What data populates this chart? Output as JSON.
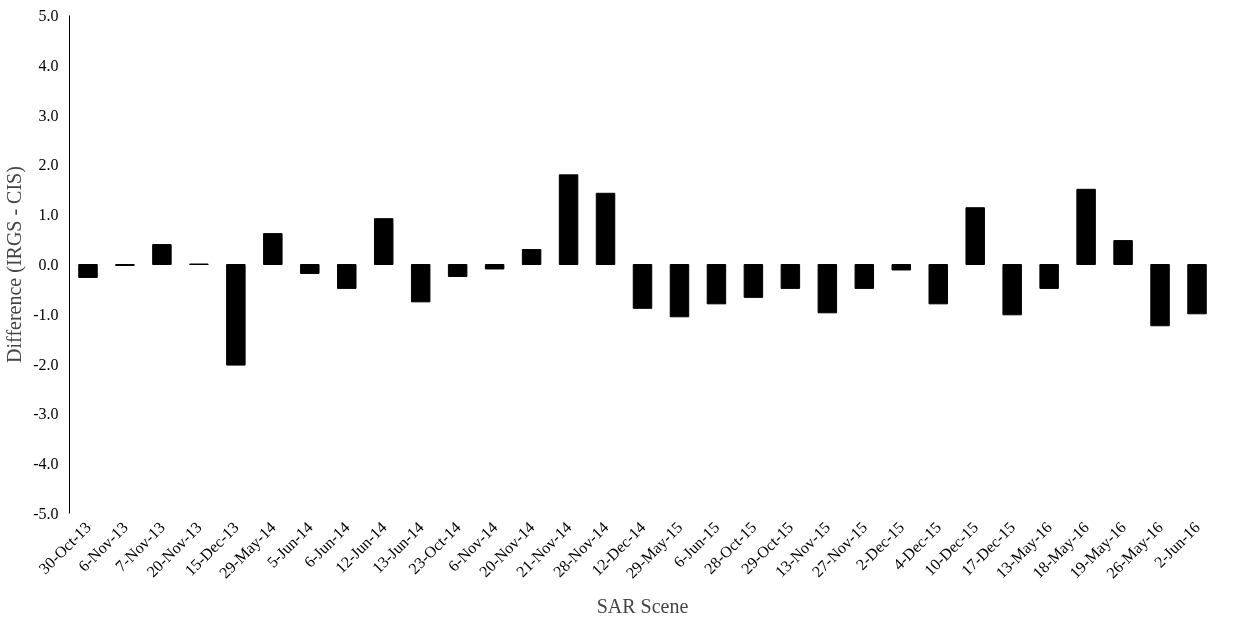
{
  "chart_data": {
    "type": "bar",
    "xlabel": "SAR Scene",
    "ylabel": "Difference (IRGS - CIS)",
    "categories": [
      "30-Oct-13",
      "6-Nov-13",
      "7-Nov-13",
      "20-Nov-13",
      "15-Dec-13",
      "29-May-14",
      "5-Jun-14",
      "6-Jun-14",
      "12-Jun-14",
      "13-Jun-14",
      "23-Oct-14",
      "6-Nov-14",
      "20-Nov-14",
      "21-Nov-14",
      "28-Nov-14",
      "12-Dec-14",
      "29-May-15",
      "6-Jun-15",
      "28-Oct-15",
      "29-Oct-15",
      "13-Nov-15",
      "27-Nov-15",
      "2-Dec-15",
      "4-Dec-15",
      "10-Dec-15",
      "17-Dec-15",
      "13-May-16",
      "18-May-16",
      "19-May-16",
      "26-May-16",
      "2-Jun-16"
    ],
    "values": [
      -0.26,
      -0.02,
      0.4,
      0.01,
      -2.02,
      0.62,
      -0.18,
      -0.48,
      0.92,
      -0.75,
      -0.24,
      -0.09,
      0.3,
      1.8,
      1.43,
      -0.88,
      -1.05,
      -0.79,
      -0.66,
      -0.48,
      -0.97,
      -0.48,
      -0.11,
      -0.79,
      1.14,
      -1.01,
      -0.48,
      1.51,
      0.48,
      -1.23,
      -0.99
    ],
    "color": "#000000",
    "ylim": [
      -5,
      5
    ],
    "yticks": [
      {
        "value": -5,
        "label": "-5.0"
      },
      {
        "value": -4,
        "label": "-4.0"
      },
      {
        "value": -3,
        "label": "-3.0"
      },
      {
        "value": -2,
        "label": "-2.0"
      },
      {
        "value": -1,
        "label": "-1.0"
      },
      {
        "value": 0,
        "label": "0.0"
      },
      {
        "value": 1,
        "label": "1.0"
      },
      {
        "value": 2,
        "label": "2.0"
      },
      {
        "value": 3,
        "label": "3.0"
      },
      {
        "value": 4,
        "label": "4.0"
      },
      {
        "value": 5,
        "label": "5.0"
      }
    ],
    "grid": false
  }
}
